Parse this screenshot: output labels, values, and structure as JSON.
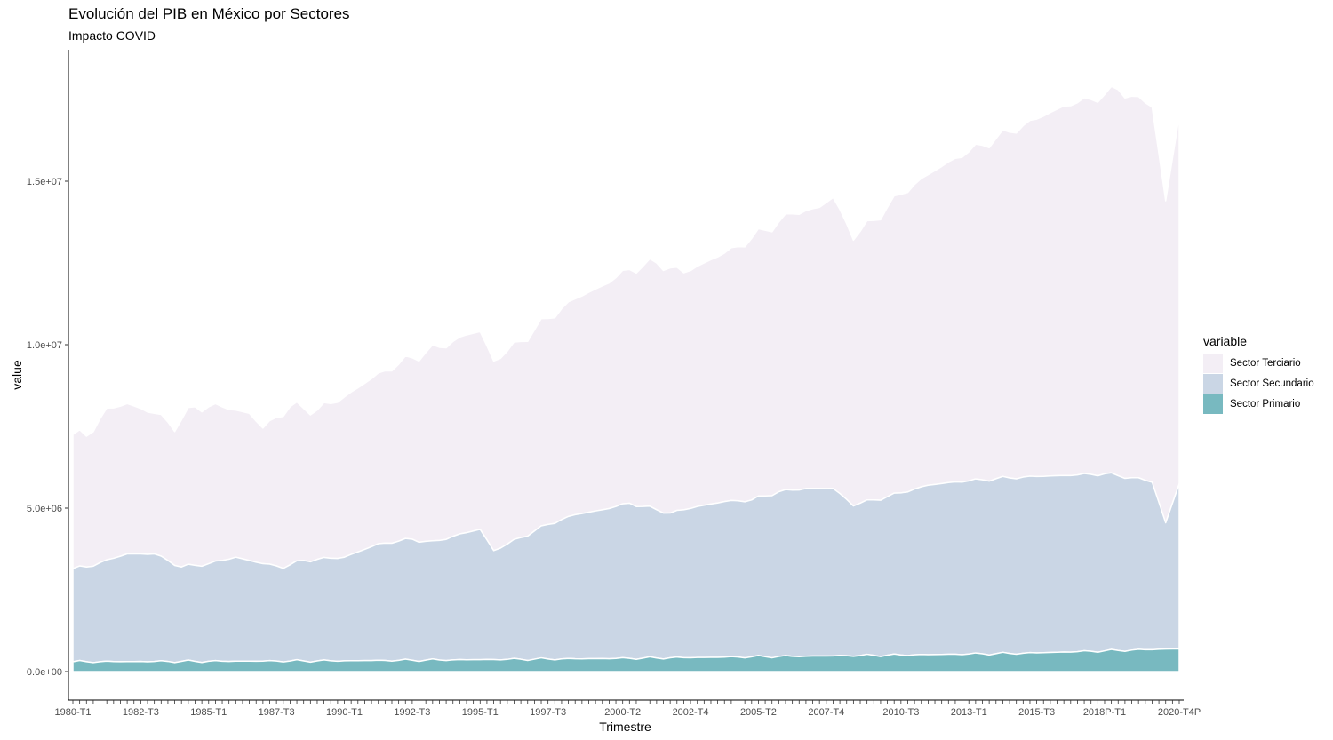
{
  "chart_data": {
    "type": "area",
    "stacked": true,
    "title": "Evolución del PIB en México por Sectores",
    "subtitle": "Impacto COVID",
    "xlabel": "Trimestre",
    "ylabel": "value",
    "ylim": [
      -600000,
      19000000
    ],
    "y_ticks": [
      {
        "value": 0,
        "label": "0.0e+00"
      },
      {
        "value": 5000000,
        "label": "5.0e+06"
      },
      {
        "value": 10000000,
        "label": "1.0e+07"
      },
      {
        "value": 15000000,
        "label": "1.5e+07"
      }
    ],
    "x_tick_labels": [
      "1980-T1",
      "1982-T3",
      "1985-T1",
      "1987-T3",
      "1990-T1",
      "1992-T3",
      "1995-T1",
      "1997-T3",
      "2000-T2",
      "2002-T4",
      "2005-T2",
      "2007-T4",
      "2010-T3",
      "2013-T1",
      "2015-T3",
      "2018P-T1",
      "2020-T4P"
    ],
    "x_tick_positions": [
      0,
      10,
      20,
      30,
      40,
      50,
      60,
      70,
      81,
      91,
      101,
      111,
      122,
      132,
      142,
      152,
      163
    ],
    "grid": false,
    "legend": {
      "title": "variable",
      "position": "right",
      "items": [
        {
          "label": "Sector Terciario",
          "color": "#f3eef5"
        },
        {
          "label": "Sector Secundario",
          "color": "#cad6e5"
        },
        {
          "label": "Sector Primario",
          "color": "#78b9c0"
        }
      ]
    },
    "n_quarters": 164,
    "x_first": "1980-T1",
    "x_last": "2020-T4P",
    "series": [
      {
        "name": "Sector Primario",
        "color": "#78b9c0",
        "anchors": [
          [
            0,
            300000
          ],
          [
            40,
            330000
          ],
          [
            80,
            400000
          ],
          [
            100,
            450000
          ],
          [
            120,
            500000
          ],
          [
            140,
            560000
          ],
          [
            163,
            700000
          ]
        ]
      },
      {
        "name": "Sector Secundario",
        "color": "#cad6e5",
        "anchors": [
          [
            0,
            3150000
          ],
          [
            2,
            3200000
          ],
          [
            5,
            3400000
          ],
          [
            8,
            3600000
          ],
          [
            12,
            3600000
          ],
          [
            16,
            3200000
          ],
          [
            20,
            3300000
          ],
          [
            24,
            3500000
          ],
          [
            28,
            3300000
          ],
          [
            31,
            3200000
          ],
          [
            34,
            3400000
          ],
          [
            40,
            3500000
          ],
          [
            45,
            3900000
          ],
          [
            50,
            4050000
          ],
          [
            53,
            3950000
          ],
          [
            57,
            4200000
          ],
          [
            60,
            4350000
          ],
          [
            62,
            3700000
          ],
          [
            66,
            4100000
          ],
          [
            70,
            4500000
          ],
          [
            74,
            4800000
          ],
          [
            78,
            4950000
          ],
          [
            82,
            5150000
          ],
          [
            86,
            4950000
          ],
          [
            88,
            4850000
          ],
          [
            92,
            5050000
          ],
          [
            96,
            5200000
          ],
          [
            100,
            5250000
          ],
          [
            104,
            5500000
          ],
          [
            108,
            5600000
          ],
          [
            112,
            5600000
          ],
          [
            115,
            5100000
          ],
          [
            120,
            5350000
          ],
          [
            126,
            5700000
          ],
          [
            130,
            5800000
          ],
          [
            136,
            5900000
          ],
          [
            140,
            5950000
          ],
          [
            146,
            6000000
          ],
          [
            152,
            6050000
          ],
          [
            157,
            5900000
          ],
          [
            159,
            5800000
          ],
          [
            161,
            4550000
          ],
          [
            163,
            5750000
          ]
        ]
      },
      {
        "name": "Sector Terciario",
        "color": "#f3eef5",
        "anchors": [
          [
            0,
            7250000
          ],
          [
            2,
            7200000
          ],
          [
            5,
            8000000
          ],
          [
            8,
            8200000
          ],
          [
            12,
            7900000
          ],
          [
            15,
            7500000
          ],
          [
            18,
            8100000
          ],
          [
            22,
            8100000
          ],
          [
            26,
            7900000
          ],
          [
            28,
            7450000
          ],
          [
            32,
            8100000
          ],
          [
            36,
            8000000
          ],
          [
            40,
            8400000
          ],
          [
            45,
            9100000
          ],
          [
            50,
            9600000
          ],
          [
            55,
            10000000
          ],
          [
            58,
            10300000
          ],
          [
            60,
            10400000
          ],
          [
            62,
            9500000
          ],
          [
            66,
            10100000
          ],
          [
            70,
            10800000
          ],
          [
            74,
            11400000
          ],
          [
            78,
            11800000
          ],
          [
            82,
            12300000
          ],
          [
            86,
            12500000
          ],
          [
            90,
            12200000
          ],
          [
            94,
            12600000
          ],
          [
            98,
            13000000
          ],
          [
            102,
            13500000
          ],
          [
            106,
            14000000
          ],
          [
            110,
            14200000
          ],
          [
            112,
            14500000
          ],
          [
            115,
            13300000
          ],
          [
            118,
            13800000
          ],
          [
            122,
            14600000
          ],
          [
            126,
            15200000
          ],
          [
            130,
            15700000
          ],
          [
            134,
            16100000
          ],
          [
            138,
            16500000
          ],
          [
            142,
            16900000
          ],
          [
            146,
            17300000
          ],
          [
            150,
            17500000
          ],
          [
            154,
            17800000
          ],
          [
            157,
            17500000
          ],
          [
            159,
            17300000
          ],
          [
            161,
            14400000
          ],
          [
            163,
            17000000
          ]
        ]
      }
    ]
  }
}
